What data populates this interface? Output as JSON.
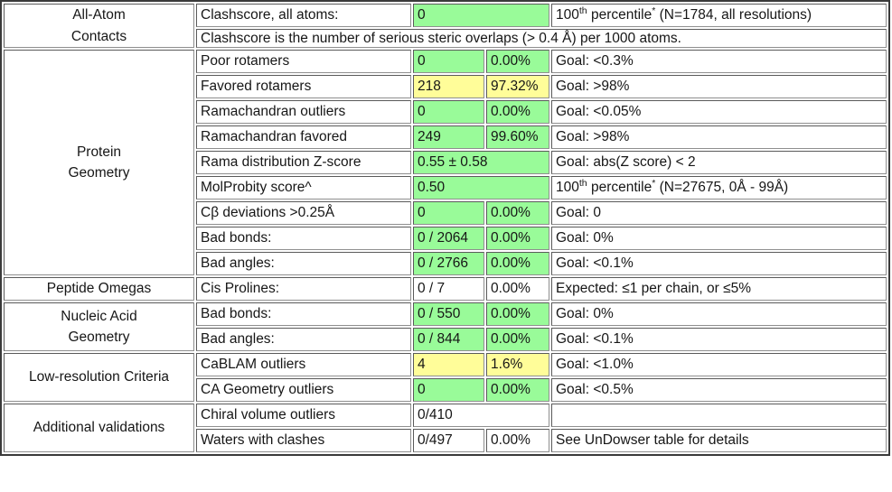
{
  "status_colors": {
    "good": "#99fb99",
    "warning": "#fffd99",
    "neutral": "#ffffff"
  },
  "sections": [
    {
      "label_lines": [
        "All-Atom",
        "Contacts"
      ],
      "rows": [
        {
          "metric": "Clashscore, all atoms:",
          "value": "0",
          "span2": true,
          "color": "good",
          "goal_parts": [
            [
              "100",
              false
            ],
            [
              "th",
              true
            ],
            [
              " percentile",
              false
            ],
            [
              "*",
              true
            ],
            [
              " (N=1784, all resolutions)",
              false
            ]
          ]
        },
        {
          "note": "Clashscore is the number of serious steric overlaps (> 0.4 Å) per 1000 atoms."
        }
      ]
    },
    {
      "label_lines": [
        "Protein",
        "Geometry"
      ],
      "rows": [
        {
          "metric": "Poor rotamers",
          "value": "0",
          "pct": "0.00%",
          "color": "good",
          "goal": "Goal: <0.3%"
        },
        {
          "metric": "Favored rotamers",
          "value": "218",
          "pct": "97.32%",
          "color": "warning",
          "goal": "Goal: >98%"
        },
        {
          "metric": "Ramachandran outliers",
          "value": "0",
          "pct": "0.00%",
          "color": "good",
          "goal": "Goal: <0.05%"
        },
        {
          "metric": "Ramachandran favored",
          "value": "249",
          "pct": "99.60%",
          "color": "good",
          "goal": "Goal: >98%"
        },
        {
          "metric": "Rama distribution Z-score",
          "value": "0.55 ± 0.58",
          "span2": true,
          "color": "good",
          "goal": "Goal: abs(Z score) < 2"
        },
        {
          "metric": "MolProbity score^",
          "value": "0.50",
          "span2": true,
          "color": "good",
          "goal_parts": [
            [
              "100",
              false
            ],
            [
              "th",
              true
            ],
            [
              " percentile",
              false
            ],
            [
              "*",
              true
            ],
            [
              " (N=27675, 0Å - 99Å)",
              false
            ]
          ]
        },
        {
          "metric": "Cβ deviations >0.25Å",
          "value": "0",
          "pct": "0.00%",
          "color": "good",
          "goal": "Goal: 0"
        },
        {
          "metric": "Bad bonds:",
          "value": "0 / 2064",
          "pct": "0.00%",
          "color": "good",
          "goal": "Goal: 0%"
        },
        {
          "metric": "Bad angles:",
          "value": "0 / 2766",
          "pct": "0.00%",
          "color": "good",
          "goal": "Goal: <0.1%"
        }
      ]
    },
    {
      "label_lines": [
        "Peptide Omegas"
      ],
      "rows": [
        {
          "metric": "Cis Prolines:",
          "value": "0 / 7",
          "pct": "0.00%",
          "color": "neutral",
          "goal": "Expected: ≤1 per chain, or ≤5%"
        }
      ]
    },
    {
      "label_lines": [
        "Nucleic Acid",
        "Geometry"
      ],
      "rows": [
        {
          "metric": "Bad bonds:",
          "value": "0 / 550",
          "pct": "0.00%",
          "color": "good",
          "goal": "Goal: 0%"
        },
        {
          "metric": "Bad angles:",
          "value": "0 / 844",
          "pct": "0.00%",
          "color": "good",
          "goal": "Goal: <0.1%"
        }
      ]
    },
    {
      "label_lines": [
        "Low-resolution Criteria"
      ],
      "rows": [
        {
          "metric": "CaBLAM outliers",
          "value": "4",
          "pct": "1.6%",
          "color": "warning",
          "goal": "Goal: <1.0%"
        },
        {
          "metric": "CA Geometry outliers",
          "value": "0",
          "pct": "0.00%",
          "color": "good",
          "goal": "Goal: <0.5%"
        }
      ]
    },
    {
      "label_lines": [
        "Additional validations"
      ],
      "rows": [
        {
          "metric": "Chiral volume outliers",
          "value": "0/410",
          "span2": true,
          "color": "neutral",
          "goal": ""
        },
        {
          "metric": "Waters with clashes",
          "value": "0/497",
          "pct": "0.00%",
          "color": "neutral",
          "goal": "See UnDowser table for details"
        }
      ]
    }
  ]
}
